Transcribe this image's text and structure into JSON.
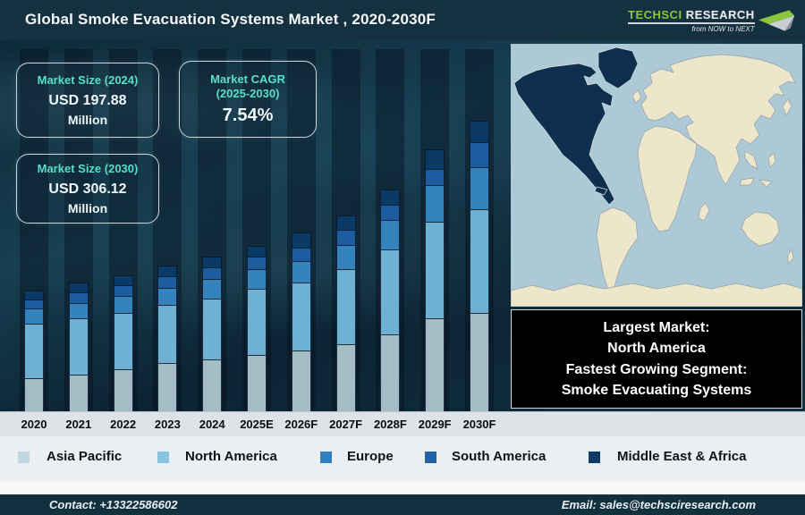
{
  "header": {
    "title": "Global Smoke Evacuation Systems Market , 2020-2030F",
    "logo": {
      "brand_primary": "TechSci",
      "brand_secondary": "Research",
      "tagline": "from NOW to NEXT",
      "brand_green": "#8bc53f"
    }
  },
  "stats": {
    "size_2024": {
      "label": "Market Size (2024)",
      "value": "USD 197.88",
      "unit": "Million"
    },
    "cagr": {
      "label": "Market CAGR",
      "label2": "(2025-2030)",
      "value": "7.54%"
    },
    "size_2030": {
      "label": "Market Size (2030)",
      "value": "USD 306.12",
      "unit": "Million"
    }
  },
  "callout": {
    "line1": "Largest Market:",
    "line2": "North America",
    "line3": "Fastest Growing Segment:",
    "line4": "Smoke Evacuating Systems"
  },
  "map": {
    "highlight_region": "North America",
    "colors": {
      "ocean": "#aec9d6",
      "land": "#ece6cb",
      "border": "#98a2a8",
      "highlight": "#0e2f4d"
    }
  },
  "chart_data": {
    "type": "bar",
    "stacked": true,
    "title": "Global Smoke Evacuation Systems Market , 2020-2030F",
    "xlabel": "",
    "ylabel": "",
    "axis_note": "no value axis shown; series values are relative stacked heights (px), baseline at bottom",
    "known_values": {
      "market_size_2024": "USD 197.88 Million",
      "market_size_2030": "USD 306.12 Million",
      "cagr_2025_2030": "7.54%"
    },
    "categories": [
      "2020",
      "2021",
      "2022",
      "2023",
      "2024",
      "2025E",
      "2026F",
      "2027F",
      "2028F",
      "2029F",
      "2030F"
    ],
    "series": [
      {
        "name": "Asia Pacific",
        "color": "#a4bcc6",
        "swatch": "#bed7e2",
        "values": [
          37,
          41,
          47,
          54,
          58,
          63,
          68,
          75,
          86,
          104,
          110
        ]
      },
      {
        "name": "North America",
        "color": "#6fb1d2",
        "swatch": "#87c4df",
        "values": [
          61,
          63,
          63,
          65,
          68,
          74,
          76,
          84,
          95,
          108,
          116
        ]
      },
      {
        "name": "Europe",
        "color": "#3583bd",
        "swatch": "#2f7fc1",
        "values": [
          17,
          17,
          19,
          19,
          22,
          22,
          24,
          27,
          33,
          41,
          47
        ]
      },
      {
        "name": "South America",
        "color": "#1d5c9e",
        "swatch": "#2062a8",
        "values": [
          10,
          12,
          12,
          13,
          13,
          14,
          15,
          17,
          17,
          18,
          28
        ]
      },
      {
        "name": "Middle East & Africa",
        "color": "#0b3a66",
        "swatch": "#0d3a66",
        "values": [
          10,
          11,
          11,
          12,
          12,
          12,
          17,
          16,
          17,
          22,
          24
        ]
      }
    ],
    "legend_position": "bottom"
  },
  "footer": {
    "contact": "Contact: +13322586602",
    "email": "Email: sales@techsciresearch.com"
  }
}
